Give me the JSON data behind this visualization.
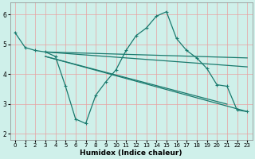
{
  "xlabel": "Humidex (Indice chaleur)",
  "bg_color": "#cff0ea",
  "grid_color": "#e8a0a0",
  "line_color": "#1a7a6e",
  "xlim": [
    -0.5,
    23.5
  ],
  "ylim": [
    1.8,
    6.4
  ],
  "xticks": [
    0,
    1,
    2,
    3,
    4,
    5,
    6,
    7,
    8,
    9,
    10,
    11,
    12,
    13,
    14,
    15,
    16,
    17,
    18,
    19,
    20,
    21,
    22,
    23
  ],
  "yticks": [
    2,
    3,
    4,
    5,
    6
  ],
  "curve1_x": [
    0,
    1,
    2,
    3,
    4,
    5,
    6,
    7,
    8,
    9,
    10,
    11,
    12,
    13,
    14,
    15,
    16,
    17,
    18,
    19,
    20,
    21,
    22,
    23
  ],
  "curve1_y": [
    5.4,
    4.9,
    4.8,
    4.75,
    4.6,
    3.6,
    2.5,
    2.35,
    3.3,
    3.75,
    4.15,
    4.8,
    5.3,
    5.55,
    5.95,
    6.1,
    5.2,
    4.8,
    4.55,
    4.2,
    3.65,
    3.6,
    2.8,
    2.75
  ],
  "line2_x": [
    3,
    23
  ],
  "line2_y": [
    4.75,
    4.55
  ],
  "line3_x": [
    3,
    23
  ],
  "line3_y": [
    4.75,
    4.25
  ],
  "line4_x": [
    3,
    21
  ],
  "line4_y": [
    4.6,
    3.0
  ],
  "line5_x": [
    3,
    23
  ],
  "line5_y": [
    4.6,
    2.75
  ]
}
